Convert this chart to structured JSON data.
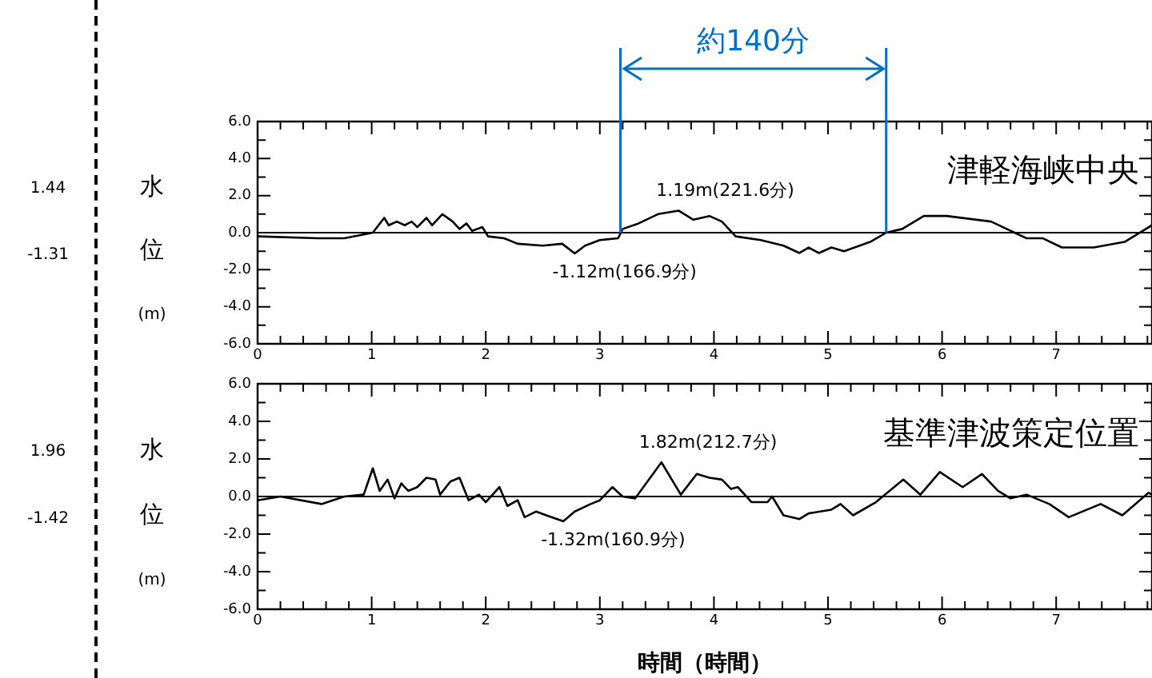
{
  "chart_data": [
    {
      "type": "line",
      "ylabel": "水位(m)",
      "annotations": [
        "津軽海峡中央",
        "1.44",
        "-1.31",
        "約140分",
        {
          "text": "1.19m(221.6分)",
          "x": 3.69,
          "y": 1.19
        },
        {
          "text": "-1.12m(166.9分)",
          "x": 2.78,
          "y": -1.12
        }
      ],
      "x": [
        0,
        0.53,
        0.76,
        1.01,
        1.11,
        1.15,
        1.22,
        1.29,
        1.35,
        1.4,
        1.48,
        1.53,
        1.62,
        1.71,
        1.77,
        1.83,
        1.88,
        1.97,
        2.02,
        2.16,
        2.28,
        2.5,
        2.67,
        2.78,
        2.87,
        3.0,
        3.16,
        3.2,
        3.34,
        3.51,
        3.69,
        3.82,
        3.96,
        4.07,
        4.19,
        4.41,
        4.61,
        4.75,
        4.83,
        4.92,
        5.03,
        5.14,
        5.37,
        5.51,
        5.65,
        5.84,
        6.04,
        6.43,
        6.6,
        6.74,
        6.88,
        7.05,
        7.33,
        7.6,
        7.84
      ],
      "series": [
        {
          "color": "#000000",
          "values": [
            -0.2,
            -0.3,
            -0.3,
            0,
            0.8,
            0.4,
            0.6,
            0.4,
            0.6,
            0.3,
            0.8,
            0.4,
            1.0,
            0.6,
            0.2,
            0.5,
            0.1,
            0.3,
            -0.2,
            -0.3,
            -0.6,
            -0.7,
            -0.6,
            -1.12,
            -0.7,
            -0.4,
            -0.3,
            0.2,
            0.5,
            1.0,
            1.19,
            0.7,
            0.9,
            0.6,
            -0.2,
            -0.4,
            -0.7,
            -1.1,
            -0.8,
            -1.1,
            -0.8,
            -1.0,
            -0.5,
            0,
            0.2,
            0.9,
            0.9,
            0.6,
            0.1,
            -0.3,
            -0.3,
            -0.8,
            -0.8,
            -0.5,
            0.4
          ]
        }
      ],
      "xlim": [
        0,
        7.84
      ],
      "ylim": [
        -6,
        6
      ],
      "xticks": [
        0,
        {
          "value": 0.2,
          "label": null
        },
        {
          "value": 0.4,
          "label": null
        },
        {
          "value": 0.6,
          "label": null
        },
        {
          "value": 0.8,
          "label": null
        },
        1,
        {
          "value": 1.2,
          "label": null
        },
        {
          "value": 1.4,
          "label": null
        },
        {
          "value": 1.6,
          "label": null
        },
        {
          "value": 1.8,
          "label": null
        },
        2,
        {
          "value": 2.2,
          "label": null
        },
        {
          "value": 2.4,
          "label": null
        },
        {
          "value": 2.6,
          "label": null
        },
        {
          "value": 2.8,
          "label": null
        },
        3,
        {
          "value": 3.2,
          "label": null
        },
        {
          "value": 3.4,
          "label": null
        },
        {
          "value": 3.6,
          "label": null
        },
        {
          "value": 3.8,
          "label": null
        },
        4,
        {
          "value": 4.2,
          "label": null
        },
        {
          "value": 4.4,
          "label": null
        },
        {
          "value": 4.6,
          "label": null
        },
        {
          "value": 4.8,
          "label": null
        },
        5,
        {
          "value": 5.2,
          "label": null
        },
        {
          "value": 5.4,
          "label": null
        },
        {
          "value": 5.6,
          "label": null
        },
        {
          "value": 5.8,
          "label": null
        },
        6,
        {
          "value": 6.2,
          "label": null
        },
        {
          "value": 6.4,
          "label": null
        },
        {
          "value": 6.6,
          "label": null
        },
        {
          "value": 6.8,
          "label": null
        },
        7,
        {
          "value": 7.2,
          "label": null
        },
        {
          "value": 7.4,
          "label": null
        },
        {
          "value": 7.6,
          "label": null
        },
        {
          "value": 7.8,
          "label": null
        }
      ],
      "yticks": [
        {
          "value": -6,
          "label": "-6.0"
        },
        {
          "value": -5,
          "label": null
        },
        {
          "value": -4,
          "label": "-4.0"
        },
        {
          "value": -3,
          "label": null
        },
        {
          "value": -2,
          "label": "-2.0"
        },
        {
          "value": -1,
          "label": null
        },
        {
          "value": 0,
          "label": "0.0"
        },
        {
          "value": 1,
          "label": null
        },
        {
          "value": 2,
          "label": "2.0"
        },
        {
          "value": 3,
          "label": null
        },
        {
          "value": 4,
          "label": "4.0"
        },
        {
          "value": 5,
          "label": null
        },
        {
          "value": 6,
          "label": "6.0"
        }
      ],
      "ref_lines": [
        {
          "axis": "y",
          "value": 0,
          "color": "#000000"
        },
        {
          "axis": "x",
          "value": 3.18,
          "color": "#0070c0"
        },
        {
          "axis": "x",
          "value": 5.51,
          "color": "#0070c0"
        }
      ],
      "grid": false,
      "legend": false,
      "marker": "none",
      "line_style": "solid"
    },
    {
      "type": "line",
      "ylabel": "水位(m)",
      "xlabel": "時間（時間）",
      "annotations": [
        "基準津波策定位置",
        "1.96",
        "-1.42",
        {
          "text": "1.82m(212.7分)",
          "x": 3.54,
          "y": 1.82
        },
        {
          "text": "-1.32m(160.9分)",
          "x": 2.68,
          "y": -1.32
        }
      ],
      "x": [
        0,
        0.2,
        0.56,
        0.76,
        0.93,
        1.01,
        1.07,
        1.14,
        1.2,
        1.26,
        1.32,
        1.4,
        1.48,
        1.56,
        1.6,
        1.69,
        1.77,
        1.85,
        1.94,
        2.0,
        2.12,
        2.19,
        2.28,
        2.34,
        2.44,
        2.53,
        2.68,
        2.78,
        2.92,
        3.0,
        3.11,
        3.2,
        3.31,
        3.54,
        3.71,
        3.85,
        3.96,
        4.07,
        4.15,
        4.21,
        4.33,
        4.47,
        4.51,
        4.61,
        4.75,
        4.83,
        5.03,
        5.11,
        5.22,
        5.42,
        5.66,
        5.81,
        5.98,
        6.18,
        6.35,
        6.49,
        6.6,
        6.74,
        6.94,
        7.11,
        7.39,
        7.58,
        7.81,
        7.84
      ],
      "series": [
        {
          "color": "#000000",
          "values": [
            -0.2,
            0,
            -0.4,
            0,
            0.1,
            1.5,
            0.3,
            0.9,
            -0.1,
            0.7,
            0.3,
            0.5,
            1.0,
            0.9,
            0.1,
            0.8,
            1.0,
            -0.2,
            0.1,
            -0.3,
            0.5,
            -0.5,
            -0.2,
            -1.1,
            -0.8,
            -1.0,
            -1.32,
            -0.8,
            -0.4,
            -0.2,
            0.5,
            0,
            -0.1,
            1.82,
            0.1,
            1.2,
            1.0,
            0.9,
            0.4,
            0.5,
            -0.3,
            -0.3,
            0,
            -1.0,
            -1.2,
            -0.9,
            -0.7,
            -0.4,
            -1.0,
            -0.3,
            0.9,
            0.1,
            1.3,
            0.5,
            1.2,
            0.3,
            -0.1,
            0.1,
            -0.4,
            -1.1,
            -0.4,
            -1.0,
            0.2,
            0.1
          ]
        }
      ],
      "xlim": [
        0,
        7.84
      ],
      "ylim": [
        -6,
        6
      ],
      "xticks": [
        0,
        {
          "value": 0.2,
          "label": null
        },
        {
          "value": 0.4,
          "label": null
        },
        {
          "value": 0.6,
          "label": null
        },
        {
          "value": 0.8,
          "label": null
        },
        1,
        {
          "value": 1.2,
          "label": null
        },
        {
          "value": 1.4,
          "label": null
        },
        {
          "value": 1.6,
          "label": null
        },
        {
          "value": 1.8,
          "label": null
        },
        2,
        {
          "value": 2.2,
          "label": null
        },
        {
          "value": 2.4,
          "label": null
        },
        {
          "value": 2.6,
          "label": null
        },
        {
          "value": 2.8,
          "label": null
        },
        3,
        {
          "value": 3.2,
          "label": null
        },
        {
          "value": 3.4,
          "label": null
        },
        {
          "value": 3.6,
          "label": null
        },
        {
          "value": 3.8,
          "label": null
        },
        4,
        {
          "value": 4.2,
          "label": null
        },
        {
          "value": 4.4,
          "label": null
        },
        {
          "value": 4.6,
          "label": null
        },
        {
          "value": 4.8,
          "label": null
        },
        5,
        {
          "value": 5.2,
          "label": null
        },
        {
          "value": 5.4,
          "label": null
        },
        {
          "value": 5.6,
          "label": null
        },
        {
          "value": 5.8,
          "label": null
        },
        6,
        {
          "value": 6.2,
          "label": null
        },
        {
          "value": 6.4,
          "label": null
        },
        {
          "value": 6.6,
          "label": null
        },
        {
          "value": 6.8,
          "label": null
        },
        7,
        {
          "value": 7.2,
          "label": null
        },
        {
          "value": 7.4,
          "label": null
        },
        {
          "value": 7.6,
          "label": null
        },
        {
          "value": 7.8,
          "label": null
        }
      ],
      "yticks": [
        {
          "value": -6,
          "label": "-6.0"
        },
        {
          "value": -5,
          "label": null
        },
        {
          "value": -4,
          "label": "-4.0"
        },
        {
          "value": -3,
          "label": null
        },
        {
          "value": -2,
          "label": "-2.0"
        },
        {
          "value": -1,
          "label": null
        },
        {
          "value": 0,
          "label": "0.0"
        },
        {
          "value": 1,
          "label": null
        },
        {
          "value": 2,
          "label": "2.0"
        },
        {
          "value": 3,
          "label": null
        },
        {
          "value": 4,
          "label": "4.0"
        },
        {
          "value": 5,
          "label": null
        },
        {
          "value": 6,
          "label": "6.0"
        }
      ],
      "ref_lines": [
        {
          "axis": "y",
          "value": 0,
          "color": "#000000"
        }
      ],
      "grid": false,
      "legend": false,
      "marker": "none",
      "line_style": "solid"
    }
  ]
}
